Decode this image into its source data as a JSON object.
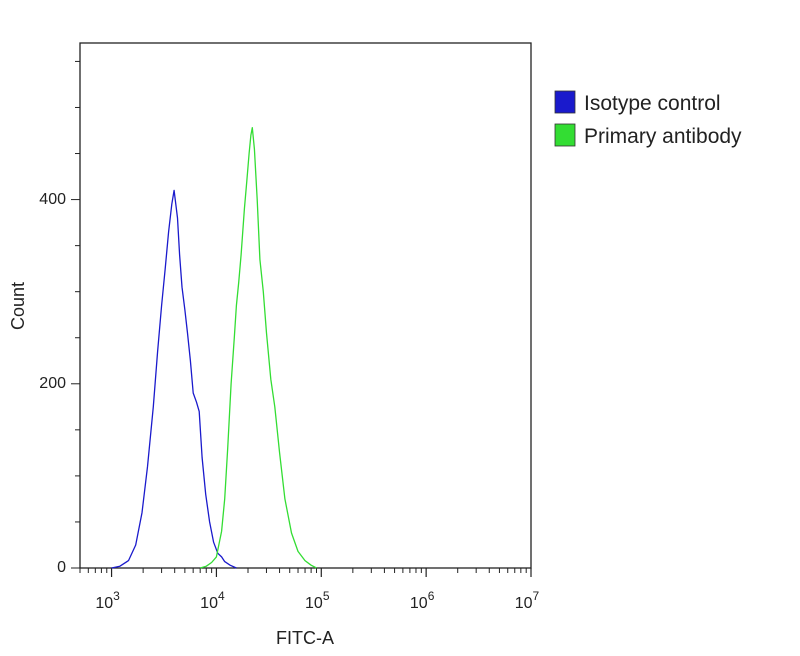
{
  "chart_data": {
    "type": "line",
    "title": "",
    "xlabel": "FITC-A",
    "ylabel": "Count",
    "x_scale": "log",
    "xlim": [
      500,
      10000000
    ],
    "ylim": [
      0,
      570
    ],
    "x_ticks": [
      {
        "value": 1000,
        "base": "10",
        "exp": "3"
      },
      {
        "value": 10000,
        "base": "10",
        "exp": "4"
      },
      {
        "value": 100000,
        "base": "10",
        "exp": "5"
      },
      {
        "value": 1000000,
        "base": "10",
        "exp": "6"
      },
      {
        "value": 10000000,
        "base": "10",
        "exp": "7"
      }
    ],
    "y_ticks": [
      {
        "value": 0,
        "label": "0"
      },
      {
        "value": 200,
        "label": "200"
      },
      {
        "value": 400,
        "label": "400"
      }
    ],
    "grid": false,
    "legend_position": "top-right",
    "series": [
      {
        "name": "Isotype control",
        "color": "#1a1acc",
        "points": [
          [
            1000,
            0
          ],
          [
            1200,
            2
          ],
          [
            1450,
            8
          ],
          [
            1700,
            25
          ],
          [
            1950,
            60
          ],
          [
            2200,
            110
          ],
          [
            2500,
            175
          ],
          [
            2750,
            235
          ],
          [
            3000,
            285
          ],
          [
            3250,
            325
          ],
          [
            3500,
            365
          ],
          [
            3750,
            395
          ],
          [
            3950,
            410
          ],
          [
            4100,
            395
          ],
          [
            4250,
            380
          ],
          [
            4450,
            340
          ],
          [
            4700,
            305
          ],
          [
            5000,
            280
          ],
          [
            5300,
            255
          ],
          [
            5650,
            225
          ],
          [
            6000,
            190
          ],
          [
            6450,
            180
          ],
          [
            6850,
            170
          ],
          [
            7300,
            120
          ],
          [
            7900,
            80
          ],
          [
            8600,
            50
          ],
          [
            9400,
            28
          ],
          [
            10300,
            16
          ],
          [
            11200,
            12
          ],
          [
            12000,
            7
          ],
          [
            13500,
            3
          ],
          [
            15500,
            0
          ]
        ]
      },
      {
        "name": "Primary antibody",
        "color": "#33dd33",
        "points": [
          [
            7000,
            0
          ],
          [
            8000,
            2
          ],
          [
            9000,
            6
          ],
          [
            10000,
            12
          ],
          [
            11200,
            40
          ],
          [
            12000,
            75
          ],
          [
            12800,
            130
          ],
          [
            13800,
            200
          ],
          [
            14800,
            250
          ],
          [
            15500,
            285
          ],
          [
            16300,
            310
          ],
          [
            17200,
            340
          ],
          [
            18500,
            390
          ],
          [
            19500,
            420
          ],
          [
            20500,
            450
          ],
          [
            21300,
            470
          ],
          [
            22000,
            478
          ],
          [
            23000,
            455
          ],
          [
            24500,
            400
          ],
          [
            26000,
            335
          ],
          [
            28000,
            300
          ],
          [
            30000,
            255
          ],
          [
            33000,
            205
          ],
          [
            36000,
            175
          ],
          [
            40000,
            125
          ],
          [
            45000,
            75
          ],
          [
            52000,
            38
          ],
          [
            60000,
            18
          ],
          [
            70000,
            8
          ],
          [
            80000,
            3
          ],
          [
            90000,
            0
          ]
        ]
      }
    ]
  }
}
